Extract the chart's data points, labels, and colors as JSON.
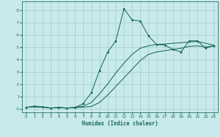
{
  "title": "",
  "xlabel": "Humidex (Indice chaleur)",
  "ylabel": "",
  "bg_color": "#c8eaea",
  "grid_color": "#a0c8c8",
  "line_color": "#1a6b5a",
  "xlim": [
    -0.5,
    23.5
  ],
  "ylim": [
    -0.3,
    8.7
  ],
  "xticks": [
    0,
    1,
    2,
    3,
    4,
    5,
    6,
    7,
    8,
    9,
    10,
    11,
    12,
    13,
    14,
    15,
    16,
    17,
    18,
    19,
    20,
    21,
    22,
    23
  ],
  "yticks": [
    0,
    1,
    2,
    3,
    4,
    5,
    6,
    7,
    8
  ],
  "line1_x": [
    0,
    1,
    2,
    3,
    4,
    5,
    6,
    7,
    8,
    9,
    10,
    11,
    12,
    13,
    14,
    15,
    16,
    17,
    18,
    19,
    20,
    21,
    22,
    23
  ],
  "line1_y": [
    0.1,
    0.2,
    0.15,
    0.05,
    0.1,
    0.05,
    0.1,
    0.4,
    1.3,
    3.1,
    4.6,
    5.5,
    8.1,
    7.2,
    7.1,
    5.9,
    5.2,
    5.15,
    4.8,
    4.6,
    5.5,
    5.5,
    4.9,
    5.1
  ],
  "line2_x": [
    0,
    1,
    2,
    3,
    4,
    5,
    6,
    7,
    8,
    9,
    10,
    11,
    12,
    13,
    14,
    15,
    16,
    17,
    18,
    19,
    20,
    21,
    22,
    23
  ],
  "line2_y": [
    0.1,
    0.15,
    0.12,
    0.05,
    0.08,
    0.05,
    0.08,
    0.12,
    0.18,
    0.5,
    1.1,
    1.8,
    2.5,
    3.2,
    3.9,
    4.4,
    4.6,
    4.7,
    4.8,
    4.9,
    5.05,
    5.1,
    5.0,
    5.1
  ],
  "line3_x": [
    0,
    1,
    2,
    3,
    4,
    5,
    6,
    7,
    8,
    9,
    10,
    11,
    12,
    13,
    14,
    15,
    16,
    17,
    18,
    19,
    20,
    21,
    22,
    23
  ],
  "line3_y": [
    0.1,
    0.15,
    0.12,
    0.05,
    0.08,
    0.05,
    0.1,
    0.2,
    0.5,
    1.2,
    2.0,
    2.9,
    3.7,
    4.4,
    4.9,
    5.1,
    5.2,
    5.25,
    5.3,
    5.35,
    5.4,
    5.45,
    5.3,
    5.15
  ]
}
